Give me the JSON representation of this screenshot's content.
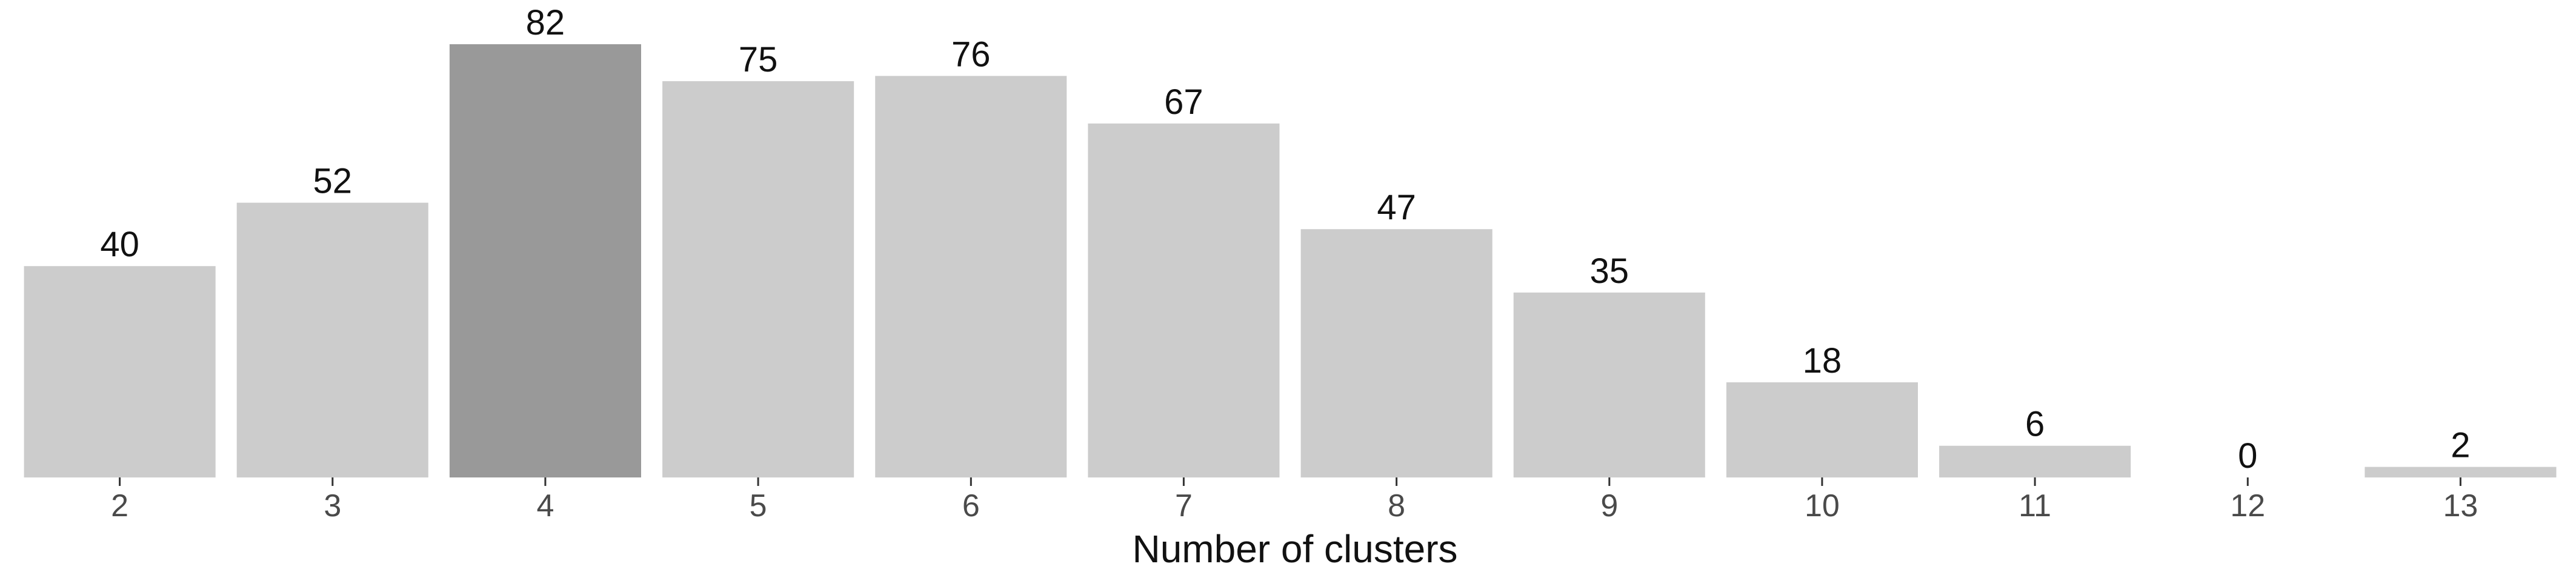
{
  "chart_data": {
    "type": "bar",
    "categories": [
      "2",
      "3",
      "4",
      "5",
      "6",
      "7",
      "8",
      "9",
      "10",
      "11",
      "12",
      "13"
    ],
    "values": [
      40,
      52,
      82,
      75,
      76,
      67,
      47,
      35,
      18,
      6,
      0,
      2
    ],
    "data_labels": [
      "40",
      "52",
      "82",
      "75",
      "76",
      "67",
      "47",
      "35",
      "18",
      "6",
      "0",
      "2"
    ],
    "highlight_category": "4",
    "title": "",
    "xlabel": "Number of clusters",
    "ylabel": "",
    "ylim": [
      0,
      82
    ],
    "grid": false,
    "legend": "none",
    "colors": {
      "bar": "#cccccc",
      "highlight": "#999999",
      "tick": "#333333"
    }
  }
}
